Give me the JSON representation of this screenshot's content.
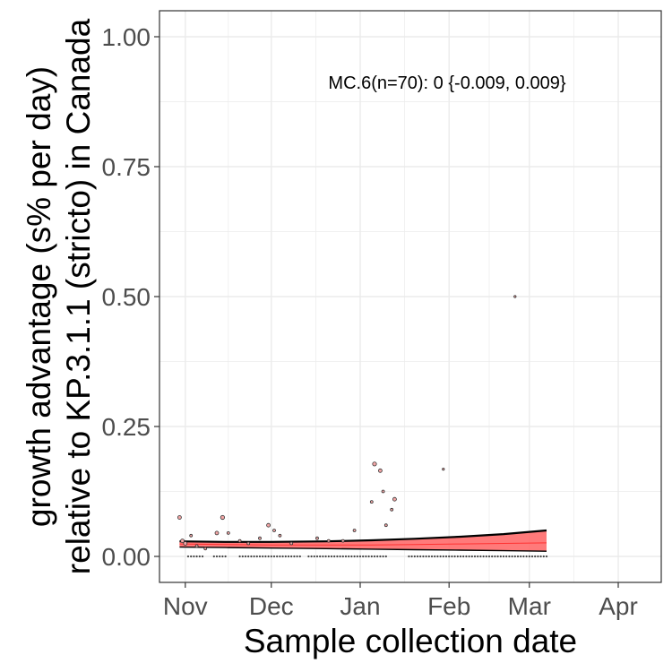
{
  "chart_data": {
    "type": "scatter",
    "title": "",
    "xlabel": "Sample collection date",
    "ylabel_lines": [
      "growth advantage (s% per day)",
      "relative to KP.3.1.1 (stricto) in Canada"
    ],
    "annotation": "MC.6(n=70): 0 {-0.009, 0.009}",
    "x_axis": {
      "type": "date",
      "range": [
        "2024-10-23",
        "2025-04-16"
      ],
      "ticks": [
        {
          "date": "2024-11-01",
          "label": "Nov"
        },
        {
          "date": "2024-12-01",
          "label": "Dec"
        },
        {
          "date": "2025-01-01",
          "label": "Jan"
        },
        {
          "date": "2025-02-01",
          "label": "Feb"
        },
        {
          "date": "2025-03-01",
          "label": "Mar"
        },
        {
          "date": "2025-04-01",
          "label": "Apr"
        }
      ]
    },
    "y_axis": {
      "range": [
        -0.05,
        1.05
      ],
      "ticks": [
        0.0,
        0.25,
        0.5,
        0.75,
        1.0
      ],
      "tick_labels": [
        "0.00",
        "0.25",
        "0.50",
        "0.75",
        "1.00"
      ]
    },
    "grid": true,
    "colors": {
      "band_fill": "#ff6b6b",
      "fit_line": "#000000",
      "band_median": "#ff3333",
      "point_fill": "#f4a6a6",
      "point_stroke": "#333333",
      "grid": "#ebebeb",
      "panel_border": "#333333"
    },
    "fit": {
      "start": "2024-10-30",
      "end": "2025-03-07",
      "upper": [
        {
          "date": "2024-10-30",
          "value": 0.029
        },
        {
          "date": "2024-11-15",
          "value": 0.028
        },
        {
          "date": "2024-12-01",
          "value": 0.028
        },
        {
          "date": "2024-12-20",
          "value": 0.029
        },
        {
          "date": "2025-01-05",
          "value": 0.031
        },
        {
          "date": "2025-01-20",
          "value": 0.034
        },
        {
          "date": "2025-02-05",
          "value": 0.038
        },
        {
          "date": "2025-02-20",
          "value": 0.043
        },
        {
          "date": "2025-03-07",
          "value": 0.05
        }
      ],
      "lower": [
        {
          "date": "2024-10-30",
          "value": 0.018
        },
        {
          "date": "2024-11-15",
          "value": 0.017
        },
        {
          "date": "2024-12-01",
          "value": 0.016
        },
        {
          "date": "2024-12-20",
          "value": 0.015
        },
        {
          "date": "2025-01-05",
          "value": 0.014
        },
        {
          "date": "2025-01-20",
          "value": 0.013
        },
        {
          "date": "2025-02-05",
          "value": 0.012
        },
        {
          "date": "2025-02-20",
          "value": 0.011
        },
        {
          "date": "2025-03-07",
          "value": 0.01
        }
      ],
      "median": [
        {
          "date": "2024-10-30",
          "value": 0.024
        },
        {
          "date": "2024-11-15",
          "value": 0.023
        },
        {
          "date": "2024-12-01",
          "value": 0.022
        },
        {
          "date": "2024-12-20",
          "value": 0.022
        },
        {
          "date": "2025-01-05",
          "value": 0.022
        },
        {
          "date": "2025-01-20",
          "value": 0.023
        },
        {
          "date": "2025-02-05",
          "value": 0.024
        },
        {
          "date": "2025-02-20",
          "value": 0.025
        },
        {
          "date": "2025-03-07",
          "value": 0.026
        }
      ],
      "line": [
        {
          "date": "2024-10-30",
          "value": 0.029
        },
        {
          "date": "2024-11-15",
          "value": 0.028
        },
        {
          "date": "2024-12-01",
          "value": 0.028
        },
        {
          "date": "2024-12-20",
          "value": 0.029
        },
        {
          "date": "2025-01-05",
          "value": 0.031
        },
        {
          "date": "2025-01-20",
          "value": 0.034
        },
        {
          "date": "2025-02-05",
          "value": 0.038
        },
        {
          "date": "2025-02-20",
          "value": 0.043
        },
        {
          "date": "2025-03-07",
          "value": 0.05
        }
      ]
    },
    "points": [
      {
        "date": "2024-10-30",
        "value": 0.075,
        "size": 2
      },
      {
        "date": "2024-10-31",
        "value": 0.03,
        "size": 2
      },
      {
        "date": "2024-11-01",
        "value": 0.025,
        "size": 2
      },
      {
        "date": "2024-11-03",
        "value": 0.04,
        "size": 1.5
      },
      {
        "date": "2024-11-05",
        "value": 0.02,
        "size": 1.5
      },
      {
        "date": "2024-11-08",
        "value": 0.015,
        "size": 1.5
      },
      {
        "date": "2024-11-12",
        "value": 0.045,
        "size": 2
      },
      {
        "date": "2024-11-14",
        "value": 0.075,
        "size": 2.2
      },
      {
        "date": "2024-11-16",
        "value": 0.045,
        "size": 1.5
      },
      {
        "date": "2024-11-20",
        "value": 0.03,
        "size": 1.5
      },
      {
        "date": "2024-11-23",
        "value": 0.025,
        "size": 1.5
      },
      {
        "date": "2024-11-27",
        "value": 0.035,
        "size": 1.5
      },
      {
        "date": "2024-11-30",
        "value": 0.06,
        "size": 2
      },
      {
        "date": "2024-12-02",
        "value": 0.05,
        "size": 1.5
      },
      {
        "date": "2024-12-04",
        "value": 0.04,
        "size": 1.5
      },
      {
        "date": "2024-12-08",
        "value": 0.025,
        "size": 1.5
      },
      {
        "date": "2024-12-17",
        "value": 0.035,
        "size": 1.5
      },
      {
        "date": "2024-12-21",
        "value": 0.03,
        "size": 1.5
      },
      {
        "date": "2024-12-30",
        "value": 0.05,
        "size": 1.5
      },
      {
        "date": "2024-12-26",
        "value": 0.03,
        "size": 1.5
      },
      {
        "date": "2025-01-05",
        "value": 0.105,
        "size": 1.5
      },
      {
        "date": "2025-01-06",
        "value": 0.178,
        "size": 2.2
      },
      {
        "date": "2025-01-08",
        "value": 0.165,
        "size": 2
      },
      {
        "date": "2025-01-09",
        "value": 0.125,
        "size": 1.5
      },
      {
        "date": "2025-01-10",
        "value": 0.06,
        "size": 1.5
      },
      {
        "date": "2025-01-12",
        "value": 0.09,
        "size": 1.5
      },
      {
        "date": "2025-01-13",
        "value": 0.11,
        "size": 2
      },
      {
        "date": "2025-01-30",
        "value": 0.168,
        "size": 1.2
      },
      {
        "date": "2025-02-24",
        "value": 0.5,
        "size": 1.2
      }
    ],
    "zero_points": {
      "start": "2024-11-02",
      "end": "2025-03-07",
      "value": 0.0,
      "skip": [
        [
          "2024-11-08",
          "2024-11-10"
        ],
        [
          "2024-11-16",
          "2024-11-19"
        ],
        [
          "2024-12-12",
          "2024-12-13"
        ],
        [
          "2025-01-11",
          "2025-01-14"
        ],
        [
          "2025-01-15",
          "2025-01-17"
        ]
      ]
    }
  }
}
